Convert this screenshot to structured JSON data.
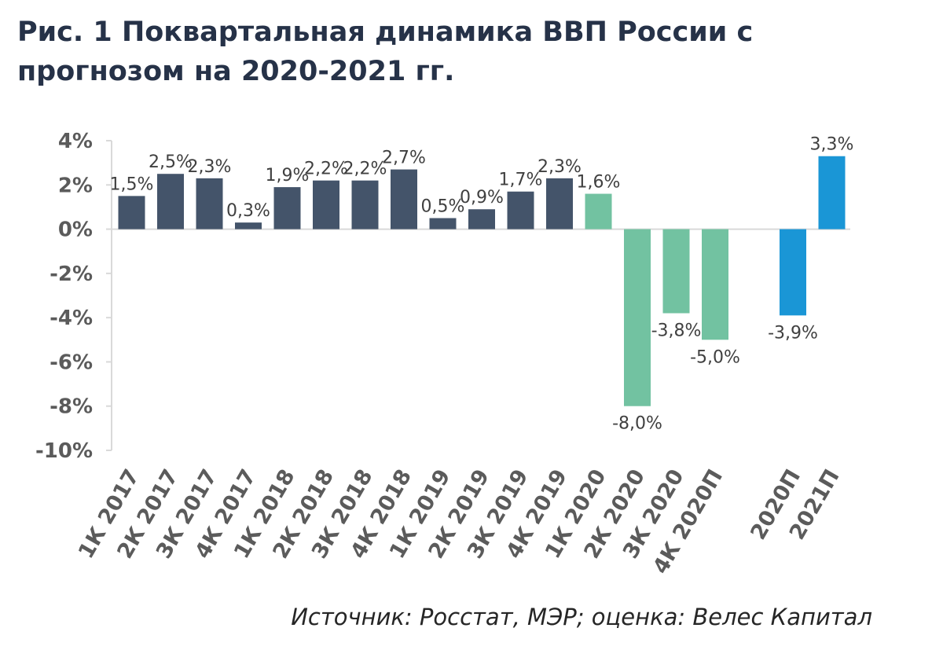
{
  "title_lines": [
    "Рис. 1 Поквартальная динамика ВВП России с",
    "прогнозом на 2020-2021 гг."
  ],
  "source": "Источник: Росстат, МЭР; оценка: Велес Капитал",
  "colors": {
    "actual": "#44546a",
    "quarter_2020": "#72c2a1",
    "annual_forecast": "#1a96d6"
  },
  "chart_data": {
    "type": "bar",
    "title": "Рис. 1 Поквартальная динамика ВВП России с прогнозом на 2020-2021 гг.",
    "xlabel": "",
    "ylabel": "",
    "ylim": [
      -10,
      4
    ],
    "yticks": [
      4,
      2,
      0,
      -2,
      -4,
      -6,
      -8,
      -10
    ],
    "ytick_labels": [
      "4%",
      "2%",
      "0%",
      "-2%",
      "-4%",
      "-6%",
      "-8%",
      "-10%"
    ],
    "grid": false,
    "categories": [
      "1К 2017",
      "2К 2017",
      "3К 2017",
      "4К 2017",
      "1К 2018",
      "2К 2018",
      "3К 2018",
      "4К 2018",
      "1К 2019",
      "2К 2019",
      "3К 2019",
      "4К 2019",
      "1К 2020",
      "2К 2020",
      "3К 2020",
      "4К 2020П",
      "",
      "2020П",
      "2021П"
    ],
    "values": [
      1.5,
      2.5,
      2.3,
      0.3,
      1.9,
      2.2,
      2.2,
      2.7,
      0.5,
      0.9,
      1.7,
      2.3,
      1.6,
      -8.0,
      -3.8,
      -5.0,
      null,
      -3.9,
      3.3
    ],
    "labels": [
      "1,5%",
      "2,5%",
      "2,3%",
      "0,3%",
      "1,9%",
      "2,2%",
      "2,2%",
      "2,7%",
      "0,5%",
      "0,9%",
      "1,7%",
      "2,3%",
      "1,6%",
      "-8,0%",
      "-3,8%",
      "-5,0%",
      "",
      "-3,9%",
      "3,3%"
    ],
    "groups": [
      "actual",
      "actual",
      "actual",
      "actual",
      "actual",
      "actual",
      "actual",
      "actual",
      "actual",
      "actual",
      "actual",
      "actual",
      "quarter_2020",
      "quarter_2020",
      "quarter_2020",
      "quarter_2020",
      "",
      "annual_forecast",
      "annual_forecast"
    ]
  }
}
